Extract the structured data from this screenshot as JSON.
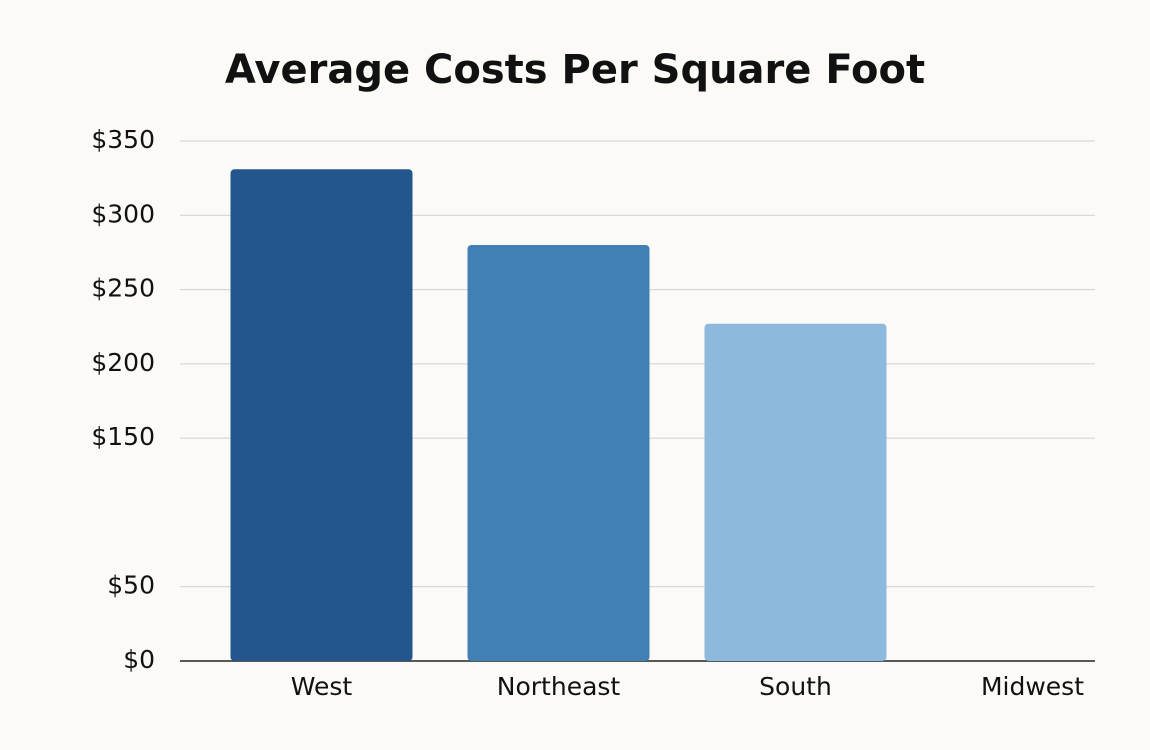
{
  "chart_data": {
    "type": "bar",
    "title": "Average Costs Per Square Foot",
    "categories": [
      "West",
      "Northeast",
      "South",
      "Midwest"
    ],
    "values": [
      331,
      280,
      227,
      null
    ],
    "colors": [
      "#23568c",
      "#4180b4",
      "#8db9dc",
      null
    ],
    "ylim": [
      0,
      350
    ],
    "yticks": [
      {
        "value": 0,
        "label": "$0"
      },
      {
        "value": 50,
        "label": "$50"
      },
      {
        "value": 150,
        "label": "$150"
      },
      {
        "value": 200,
        "label": "$200"
      },
      {
        "value": 250,
        "label": "$250"
      },
      {
        "value": 300,
        "label": "$300"
      },
      {
        "value": 350,
        "label": "$350"
      }
    ],
    "grid": true
  }
}
